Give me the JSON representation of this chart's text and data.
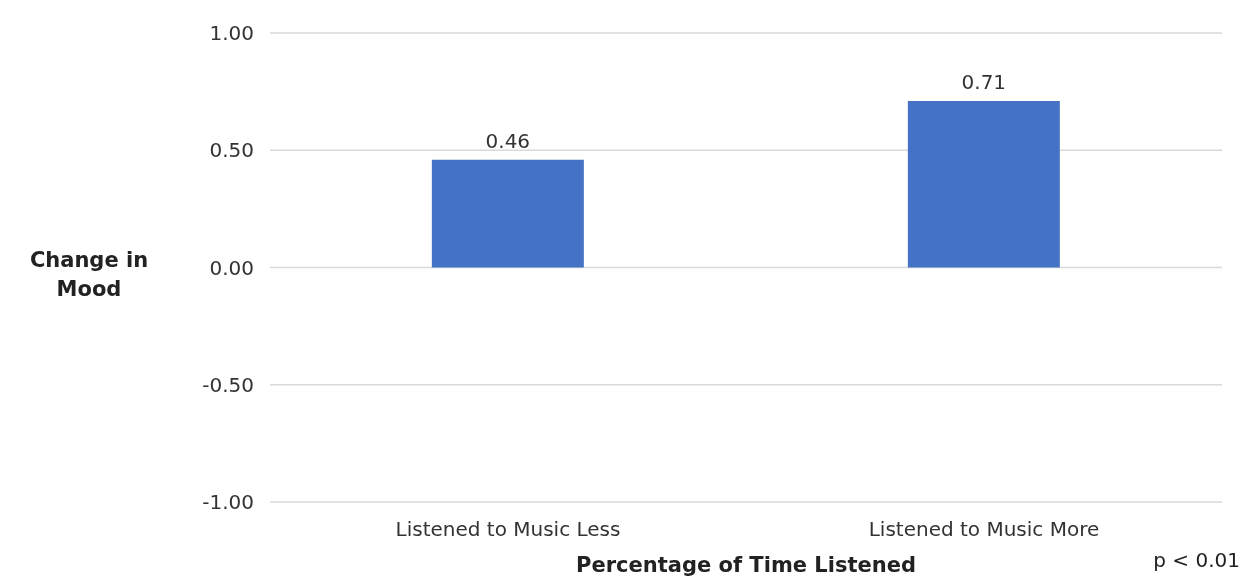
{
  "chart_data": {
    "type": "bar",
    "xlabel": "Percentage of Time Listened",
    "ylabel": "Change in Mood",
    "categories": [
      "Listened to Music Less",
      "Listened to Music More"
    ],
    "values": [
      0.46,
      0.71
    ],
    "color": "#4472c4",
    "ylim": [
      -1,
      1
    ],
    "yticks": [
      {
        "value": -1,
        "label": "-1.00"
      },
      {
        "value": -0.5,
        "label": "-0.50"
      },
      {
        "value": 0,
        "label": "0.00"
      },
      {
        "value": 0.5,
        "label": "0.50"
      },
      {
        "value": 1,
        "label": "1.00"
      }
    ],
    "grid": "y",
    "data_labels": true,
    "annotations": [
      "p < 0.01"
    ]
  }
}
